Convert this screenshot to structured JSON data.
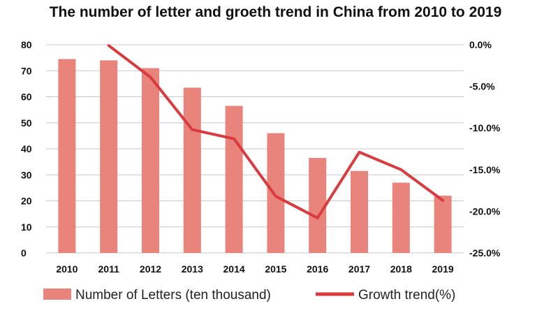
{
  "chart_data": {
    "type": "bar",
    "title": "The number of letter and groeth trend in China from 2010 to 2019",
    "categories": [
      "2010",
      "2011",
      "2012",
      "2013",
      "2014",
      "2015",
      "2016",
      "2017",
      "2018",
      "2019"
    ],
    "series": [
      {
        "name": "Number of Letters (ten thousand)",
        "type": "bar",
        "axis": "left",
        "color": "#E8847C",
        "values": [
          74.5,
          74,
          71,
          63.5,
          56.5,
          46,
          36.5,
          31.5,
          27,
          22
        ]
      },
      {
        "name": "Growth trend(%)",
        "type": "line",
        "axis": "right",
        "color": "#D93B3F",
        "values": [
          null,
          -0.1,
          -3.9,
          -10.2,
          -11.3,
          -18.2,
          -20.8,
          -12.9,
          -15.0,
          -18.7
        ]
      }
    ],
    "y_left": {
      "ylim": [
        0,
        80
      ],
      "ticks": [
        "0",
        "10",
        "20",
        "30",
        "40",
        "50",
        "60",
        "70",
        "80"
      ]
    },
    "y_right": {
      "ylim": [
        -25,
        0
      ],
      "ticks": [
        "0.0%",
        "-5.0%",
        "-10.0%",
        "-15.0%",
        "-20.0%",
        "-25.0%"
      ]
    },
    "grid": true,
    "legend": "bottom"
  }
}
